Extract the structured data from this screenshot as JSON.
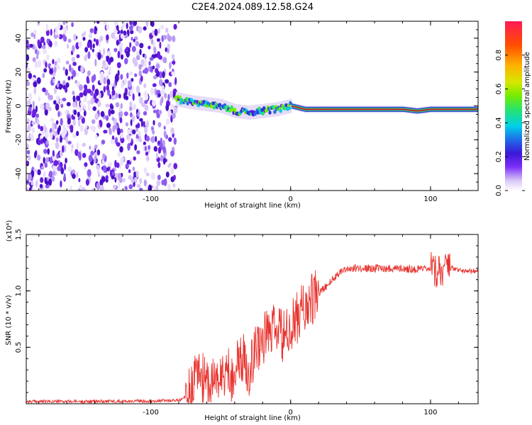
{
  "title": "C2E4.2024.089.12.58.G24",
  "colors": {
    "snr_line": "#e8332e",
    "spectrogram_noise": "#6a1fe0",
    "spectrogram_core": "#d4102a",
    "colormap": [
      "#ffffff",
      "#d9c6f7",
      "#7b2ff7",
      "#3a18d8",
      "#1f6be8",
      "#00d0e8",
      "#29e36b",
      "#74ec00",
      "#d8e600",
      "#ffb100",
      "#ff4d00",
      "#ff1a55"
    ]
  },
  "chart_data": [
    {
      "type": "heatmap",
      "xlabel": "Height of straight line (km)",
      "ylabel": "Frequency (Hz)",
      "xlim": [
        -189,
        134
      ],
      "ylim": [
        -50,
        50
      ],
      "x_ticks": [
        -100,
        0,
        100
      ],
      "x_tick_labels": [
        "-100",
        "0",
        "100"
      ],
      "y_ticks": [
        -40,
        -20,
        0,
        20,
        40
      ],
      "y_tick_labels": [
        "-40",
        "-20",
        "0",
        "20",
        "40"
      ],
      "grid": false,
      "colorbar": {
        "label": "Normalized spectral amplitude",
        "range": [
          0,
          1
        ],
        "ticks": [
          0.0,
          0.2,
          0.4,
          0.6,
          0.8
        ],
        "tick_labels": [
          "0.0",
          "0.2",
          "0.4",
          "0.6",
          "0.8"
        ]
      },
      "noise_region_x": [
        -189,
        -82
      ],
      "signal_trace": {
        "x": [
          -82,
          -70,
          -60,
          -50,
          -40,
          -30,
          -20,
          -10,
          0,
          10,
          20,
          40,
          60,
          80,
          90,
          100,
          110,
          120,
          134
        ],
        "frequency": [
          4,
          2,
          1,
          0,
          -3,
          -4,
          -3,
          -2,
          0,
          -2,
          -2,
          -2,
          -2,
          -2,
          -3,
          -2,
          -2,
          -2,
          -2
        ]
      }
    },
    {
      "type": "line",
      "xlabel": "Height of straight line (km)",
      "ylabel": "SNR (10 * v/v)",
      "y_scale_label": "(x10⁴)",
      "xlim": [
        -189,
        134
      ],
      "ylim": [
        0,
        15000
      ],
      "x_ticks": [
        -100,
        0,
        100
      ],
      "x_tick_labels": [
        "-100",
        "0",
        "100"
      ],
      "y_ticks": [
        5000,
        10000,
        15000
      ],
      "y_tick_labels": [
        "0.5",
        "1.0",
        "1.5"
      ],
      "grid": false,
      "series": [
        {
          "x": [
            -189,
            -150,
            -100,
            -80,
            -72,
            -66,
            -62,
            -58,
            -54,
            -50,
            -46,
            -42,
            -38,
            -34,
            -30,
            -26,
            -22,
            -18,
            -14,
            -10,
            -6,
            -2,
            2,
            6,
            10,
            14,
            18,
            22,
            26,
            30,
            36,
            42,
            50,
            60,
            70,
            80,
            90,
            100,
            104,
            106,
            108,
            110,
            112,
            116,
            120,
            128,
            134
          ],
          "y": [
            200,
            200,
            250,
            300,
            800,
            3000,
            2000,
            1500,
            2500,
            2000,
            3000,
            2500,
            3500,
            4000,
            3000,
            4500,
            5500,
            6000,
            6500,
            6500,
            6000,
            6000,
            7000,
            8000,
            8500,
            9000,
            9500,
            10000,
            10500,
            11000,
            11800,
            12000,
            12000,
            12000,
            12000,
            12000,
            11900,
            11900,
            11500,
            12500,
            11500,
            12500,
            11800,
            12000,
            11800,
            11800,
            11800
          ]
        }
      ]
    }
  ]
}
